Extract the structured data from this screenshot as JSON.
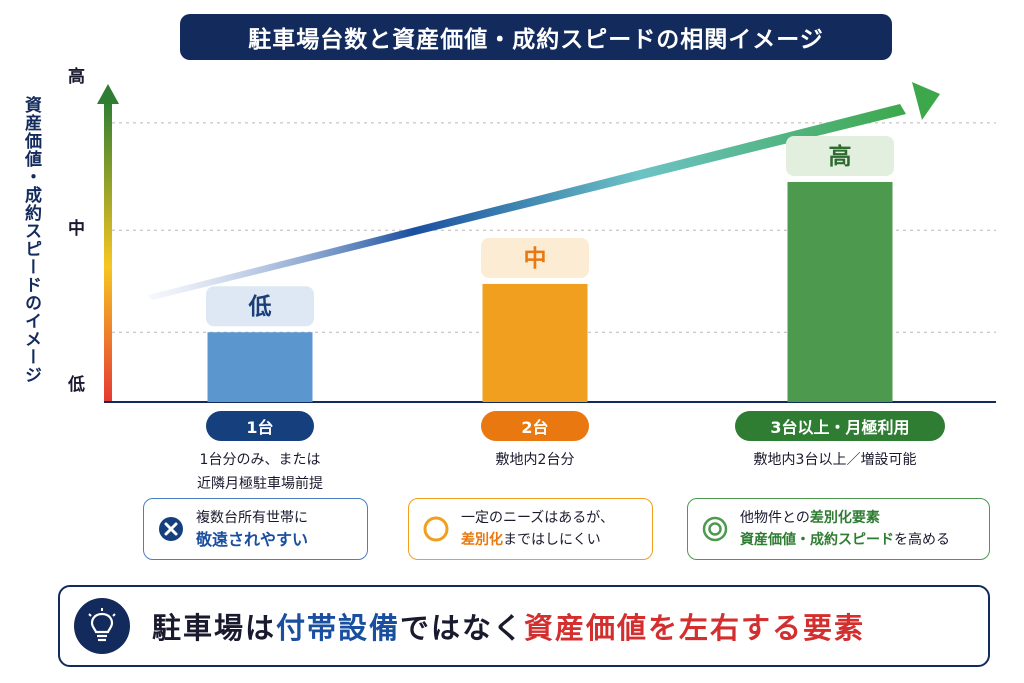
{
  "title": "駐車場台数と資産価値・成約スピードの相関イメージ",
  "chart_data": {
    "type": "bar",
    "ylabel": "資産価値・成約スピードのイメージ",
    "y_ticks": [
      "低",
      "中",
      "高"
    ],
    "ylim": [
      0,
      3
    ],
    "grid": true,
    "categories": [
      "1台",
      "2台",
      "3台以上・月極利用"
    ],
    "values": [
      0.65,
      1.1,
      2.05
    ],
    "bar_labels": [
      "低",
      "中",
      "高"
    ],
    "colors": [
      "#5b96ce",
      "#f0a01e",
      "#4d9a4f"
    ],
    "pill_colors": [
      "#15407d",
      "#e8780f",
      "#2e7d32"
    ],
    "label_bg": [
      "#dde8f4",
      "#fdecd4",
      "#e2efdf"
    ],
    "label_color": [
      "#1a3f78",
      "#e8780f",
      "#2e6b30"
    ]
  },
  "categories_desc": [
    "1台分のみ、または\n近隣月極駐車場前提",
    "敷地内2台分",
    "敷地内3台以上／増設可能"
  ],
  "notes": [
    {
      "icon": "cross-circle-icon",
      "line1": "複数台所有世帯に",
      "em": "敬遠されやすい",
      "line2": "",
      "emcolor": "#1a4fa0",
      "border": "#4a7fc1",
      "bg": "#ffffff"
    },
    {
      "icon": "circle-icon",
      "line1": "一定のニーズはあるが、",
      "em": "差別化",
      "line2": "まではしにくい",
      "emcolor": "#e8780f",
      "border": "#f0a01e",
      "bg": "#ffffff"
    },
    {
      "icon": "double-circle-icon",
      "line1pre": "他物件との",
      "em": "差別化要素",
      "line1": "",
      "line2em": "資産価値・成約スピード",
      "line2": "を高める",
      "emcolor": "#2e7d32",
      "border": "#4d9a4f",
      "bg": "#ffffff"
    }
  ],
  "footer": {
    "part1": "駐車場は",
    "part2": "付帯設備",
    "part3": "ではなく",
    "part4": "資産価値を左右する要素"
  }
}
